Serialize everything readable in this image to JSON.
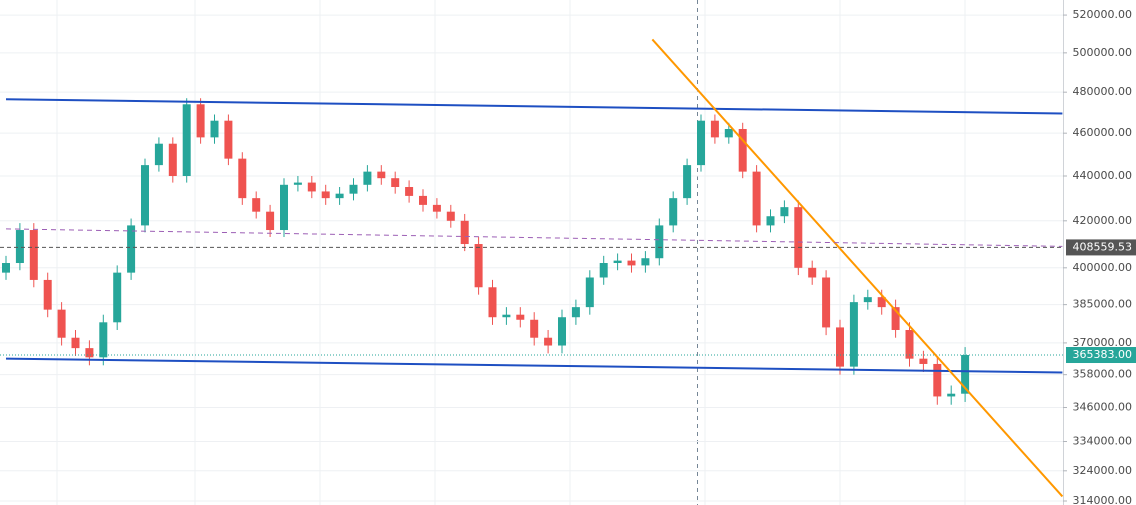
{
  "chart_data": {
    "type": "candlestick",
    "log_scale": true,
    "grid": true,
    "up_color": "#26a69a",
    "down_color": "#ef5350",
    "ylim": [
      312700,
      528200
    ],
    "yticks": [
      {
        "value": 520000,
        "label": "520000.00"
      },
      {
        "value": 500000,
        "label": "500000.00"
      },
      {
        "value": 480000,
        "label": "480000.00"
      },
      {
        "value": 460000,
        "label": "460000.00"
      },
      {
        "value": 440000,
        "label": "440000.00"
      },
      {
        "value": 420000,
        "label": "420000.00"
      },
      {
        "value": 400000,
        "label": "400000.00"
      },
      {
        "value": 385000,
        "label": "385000.00"
      },
      {
        "value": 370000,
        "label": "370000.00"
      },
      {
        "value": 358000,
        "label": "358000.00"
      },
      {
        "value": 346000,
        "label": "346000.00"
      },
      {
        "value": 334000,
        "label": "334000.00"
      },
      {
        "value": 324000,
        "label": "324000.00"
      },
      {
        "value": 314000,
        "label": "314000.00"
      }
    ],
    "open": [
      398000,
      402000,
      416000,
      395000,
      383000,
      372000,
      368000,
      364500,
      378000,
      398000,
      418000,
      445000,
      455000,
      440000,
      474000,
      458000,
      466000,
      448000,
      430000,
      424000,
      416000,
      436000,
      437000,
      433000,
      430000,
      432000,
      436000,
      442000,
      439000,
      435000,
      431000,
      427000,
      424000,
      420000,
      410000,
      392000,
      380000,
      381000,
      379000,
      372000,
      369000,
      380000,
      384000,
      396000,
      402000,
      403000,
      401000,
      404000,
      418000,
      430000,
      445000,
      466000,
      458000,
      462000,
      442000,
      418000,
      422000,
      426000,
      400000,
      396000,
      376000,
      361000,
      386000,
      388000,
      384000,
      375000,
      364000,
      362000,
      350000,
      351000
    ],
    "high": [
      405000,
      419000,
      419000,
      398000,
      386000,
      375000,
      371000,
      381000,
      401000,
      421000,
      448000,
      458000,
      458000,
      477000,
      477000,
      469000,
      469000,
      451000,
      433000,
      427000,
      439000,
      440000,
      440000,
      436000,
      435000,
      439000,
      445000,
      445000,
      442000,
      438000,
      434000,
      430000,
      427000,
      423000,
      413000,
      395000,
      384000,
      384000,
      382000,
      375000,
      383000,
      387000,
      399000,
      405000,
      406000,
      406000,
      407000,
      421000,
      433000,
      448000,
      469000,
      469000,
      465000,
      465000,
      445000,
      425000,
      429000,
      429000,
      403000,
      399000,
      379000,
      389000,
      391000,
      391000,
      387000,
      378000,
      367000,
      365000,
      354000,
      368400
    ],
    "low": [
      395000,
      399000,
      392000,
      380000,
      369000,
      365000,
      361500,
      361500,
      375000,
      395000,
      415000,
      442000,
      437000,
      437000,
      455000,
      455000,
      445000,
      427000,
      421000,
      413000,
      413000,
      433000,
      430000,
      427000,
      427000,
      429000,
      433000,
      436000,
      432000,
      428000,
      424000,
      421000,
      417000,
      407000,
      389000,
      377000,
      377000,
      376000,
      369000,
      366000,
      366000,
      377000,
      381000,
      393000,
      399000,
      398000,
      398000,
      401000,
      415000,
      427000,
      442000,
      455000,
      455000,
      439000,
      415000,
      415000,
      419000,
      397000,
      393000,
      373000,
      358000,
      358000,
      383000,
      381000,
      372000,
      361000,
      359000,
      347000,
      347000,
      348000
    ],
    "close": [
      402000,
      416000,
      395000,
      383000,
      372000,
      368000,
      364500,
      378000,
      398000,
      418000,
      445000,
      455000,
      440000,
      474000,
      458000,
      466000,
      448000,
      430000,
      424000,
      416000,
      436000,
      437000,
      433000,
      430000,
      432000,
      436000,
      442000,
      439000,
      435000,
      431000,
      427000,
      424000,
      420000,
      410000,
      392000,
      380000,
      381000,
      379000,
      372000,
      369000,
      380000,
      384000,
      396000,
      402000,
      403000,
      401000,
      404000,
      418000,
      430000,
      445000,
      466000,
      458000,
      462000,
      442000,
      418000,
      422000,
      426000,
      400000,
      396000,
      376000,
      361000,
      386000,
      388000,
      384000,
      375000,
      364000,
      362000,
      350000,
      351000,
      365383
    ],
    "lines": [
      {
        "color": "#1e4fc2",
        "dashed": false,
        "points": [
          [
            0,
            476500
          ],
          [
            76,
            469500
          ]
        ]
      },
      {
        "color": "#1e4fc2",
        "dashed": false,
        "points": [
          [
            0,
            364000
          ],
          [
            76,
            358800
          ]
        ]
      },
      {
        "color": "#ff9800",
        "dashed": false,
        "points": [
          [
            46.5,
            507000
          ],
          [
            76,
            315500
          ]
        ]
      },
      {
        "color": "#9c5fb5",
        "dashed": true,
        "points": [
          [
            0,
            416500
          ],
          [
            76,
            409000
          ]
        ]
      }
    ],
    "price_labels": [
      {
        "value": 408559.53,
        "label": "408559.53",
        "color": "#555555",
        "line": "dashed"
      },
      {
        "value": 365383,
        "label": "365383.00",
        "color": "#26a69a",
        "line": "dotted"
      }
    ]
  }
}
